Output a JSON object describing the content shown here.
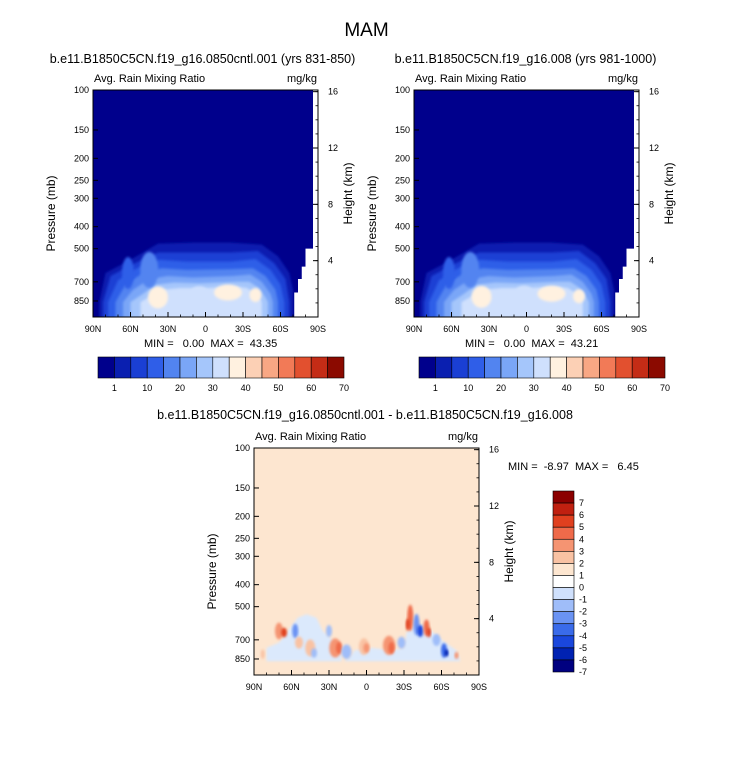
{
  "figure_title": "MAM",
  "panels": [
    {
      "title": "b.e11.B1850C5CN.f19_g16.0850cntl.001 (yrs 831-850)",
      "left_label": "Avg. Rain Mixing Ratio",
      "right_label": "mg/kg",
      "ylabel": "Pressure (mb)",
      "ylabel_right": "Height (km)",
      "minmax": "MIN =   0.00  MAX =  43.35"
    },
    {
      "title": "b.e11.B1850C5CN.f19_g16.008 (yrs 981-1000)",
      "left_label": "Avg. Rain Mixing Ratio",
      "right_label": "mg/kg",
      "ylabel": "Pressure (mb)",
      "ylabel_right": "Height (km)",
      "minmax": "MIN =   0.00  MAX =  43.21"
    },
    {
      "title": "b.e11.B1850C5CN.f19_g16.0850cntl.001 - b.e11.B1850C5CN.f19_g16.008",
      "left_label": "Avg. Rain Mixing Ratio",
      "right_label": "mg/kg",
      "ylabel": "Pressure (mb)",
      "ylabel_right": "Height (km)",
      "minmax": "MIN =  -8.97  MAX =   6.45"
    }
  ],
  "colors": {
    "abs_scale": [
      "#00008c",
      "#0a1fb0",
      "#1a3fd4",
      "#2f5ee8",
      "#5284f0",
      "#7aa6f7",
      "#a5c6fb",
      "#cfe0fd",
      "#fff1e0",
      "#fcd0b5",
      "#f8a784",
      "#f27a57",
      "#e2502f",
      "#c42c16",
      "#8b0a00"
    ],
    "diff_scale": [
      "#000080",
      "#0022b2",
      "#1a47dd",
      "#3a6bea",
      "#6a93f3",
      "#9fbdf9",
      "#cfe0fc",
      "#ffffff",
      "#fde6d0",
      "#f9c2a3",
      "#f59472",
      "#ef6a4a",
      "#e0401f",
      "#c02010",
      "#8b0000"
    ]
  },
  "chart_data": [
    {
      "type": "heatmap",
      "title": "b.e11.B1850C5CN.f19_g16.0850cntl.001 (yrs 831-850)",
      "variable": "Avg. Rain Mixing Ratio",
      "units": "mg/kg",
      "x_ticks": [
        "90N",
        "60N",
        "30N",
        "0",
        "30S",
        "60S",
        "90S"
      ],
      "x_values": [
        90,
        60,
        30,
        0,
        -30,
        -60,
        -90
      ],
      "y_ticks": [
        100,
        150,
        200,
        250,
        300,
        400,
        500,
        700,
        850
      ],
      "y_right_ticks": [
        4,
        8,
        12,
        16
      ],
      "ylabel": "Pressure (mb)",
      "ylabel_right": "Height (km)",
      "min": 0.0,
      "max": 43.35,
      "colorbar_labels": [
        1,
        10,
        20,
        30,
        40,
        50,
        60,
        70
      ]
    },
    {
      "type": "heatmap",
      "title": "b.e11.B1850C5CN.f19_g16.008 (yrs 981-1000)",
      "variable": "Avg. Rain Mixing Ratio",
      "units": "mg/kg",
      "x_ticks": [
        "90N",
        "60N",
        "30N",
        "0",
        "30S",
        "60S",
        "90S"
      ],
      "x_values": [
        90,
        60,
        30,
        0,
        -30,
        -60,
        -90
      ],
      "y_ticks": [
        100,
        150,
        200,
        250,
        300,
        400,
        500,
        700,
        850
      ],
      "y_right_ticks": [
        4,
        8,
        12,
        16
      ],
      "ylabel": "Pressure (mb)",
      "ylabel_right": "Height (km)",
      "min": 0.0,
      "max": 43.21,
      "colorbar_labels": [
        1,
        10,
        20,
        30,
        40,
        50,
        60,
        70
      ]
    },
    {
      "type": "heatmap",
      "title": "b.e11.B1850C5CN.f19_g16.0850cntl.001 - b.e11.B1850C5CN.f19_g16.008",
      "variable": "Avg. Rain Mixing Ratio",
      "units": "mg/kg",
      "x_ticks": [
        "90N",
        "60N",
        "30N",
        "0",
        "30S",
        "60S",
        "90S"
      ],
      "x_values": [
        90,
        60,
        30,
        0,
        -30,
        -60,
        -90
      ],
      "y_ticks": [
        100,
        150,
        200,
        250,
        300,
        400,
        500,
        700,
        850
      ],
      "y_right_ticks": [
        4,
        8,
        12,
        16
      ],
      "ylabel": "Pressure (mb)",
      "ylabel_right": "Height (km)",
      "min": -8.97,
      "max": 6.45,
      "colorbar_labels": [
        7,
        6,
        5,
        4,
        3,
        2,
        1,
        0,
        -1,
        -2,
        -3,
        -4,
        -5,
        -6,
        -7
      ]
    }
  ]
}
